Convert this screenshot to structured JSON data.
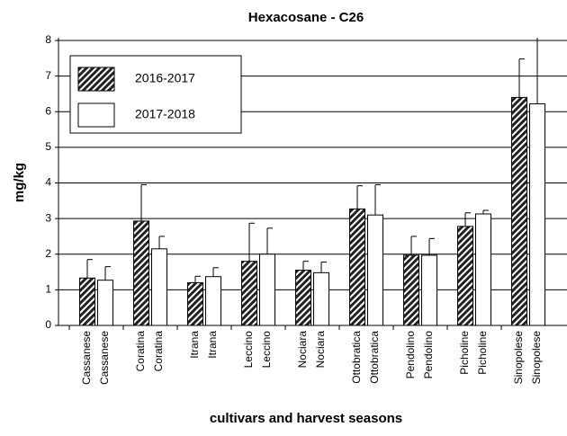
{
  "chart_data": {
    "type": "bar",
    "title": "Hexacosane - C26",
    "xlabel": "cultivars and harvest seasons",
    "ylabel": "mg/kg",
    "categories": [
      "Cassanese",
      "Coratina",
      "Itrana",
      "Leccino",
      "Nociara",
      "Ottobratica",
      "Pendolino",
      "Picholine",
      "Sinopolese"
    ],
    "series": [
      {
        "name": "2016-2017",
        "color": "#222222",
        "hatch": true,
        "values": [
          1.33,
          2.93,
          1.2,
          1.8,
          1.55,
          3.27,
          1.97,
          2.78,
          6.4
        ],
        "errors": [
          0.52,
          1.02,
          0.18,
          1.07,
          0.25,
          0.65,
          0.53,
          0.38,
          1.08
        ]
      },
      {
        "name": "2017-2018",
        "color": "#ffffff",
        "hatch": false,
        "values": [
          1.27,
          2.15,
          1.37,
          2.0,
          1.48,
          3.1,
          1.97,
          3.13,
          6.22
        ],
        "errors": [
          0.38,
          0.35,
          0.25,
          0.73,
          0.3,
          0.85,
          0.47,
          0.1,
          2.0
        ]
      }
    ],
    "ylim": [
      0,
      8
    ],
    "yticks": [
      0,
      1,
      2,
      3,
      4,
      5,
      6,
      7,
      8
    ],
    "grid": true,
    "legend": "upper left"
  }
}
